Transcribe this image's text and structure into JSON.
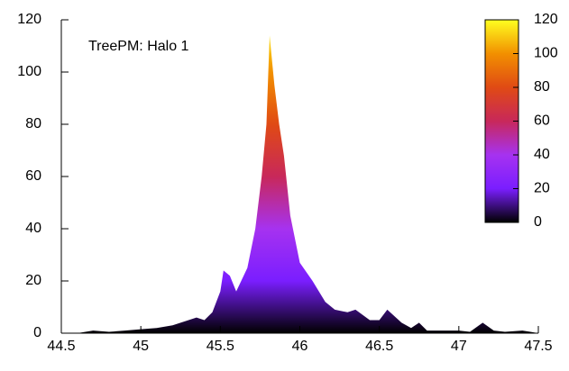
{
  "chart_data": {
    "type": "area",
    "annotation": "TreePM: Halo 1",
    "x": [
      44.5,
      44.6,
      44.7,
      44.8,
      44.9,
      45.0,
      45.1,
      45.2,
      45.25,
      45.3,
      45.35,
      45.4,
      45.45,
      45.5,
      45.52,
      45.56,
      45.6,
      45.67,
      45.72,
      45.76,
      45.79,
      45.81,
      45.84,
      45.87,
      45.9,
      45.94,
      46.0,
      46.08,
      46.16,
      46.22,
      46.3,
      46.35,
      46.44,
      46.5,
      46.55,
      46.64,
      46.7,
      46.75,
      46.8,
      46.9,
      47.0,
      47.07,
      47.15,
      47.22,
      47.29,
      47.4,
      47.45,
      47.5
    ],
    "values": [
      0,
      0,
      1,
      0.5,
      1,
      1.5,
      2,
      3,
      4,
      5,
      6,
      5,
      8,
      16,
      24,
      22,
      16,
      25,
      40,
      60,
      80,
      114,
      95,
      80,
      68,
      45,
      27,
      20,
      12,
      9,
      8,
      9,
      5,
      5,
      9,
      4,
      2,
      4,
      1,
      1,
      1,
      0.5,
      4,
      1,
      0.5,
      1,
      0.5,
      0
    ],
    "xlim": [
      44.5,
      47.5
    ],
    "xticks": [
      44.5,
      45,
      45.5,
      46,
      46.5,
      47,
      47.5
    ],
    "ylim": [
      0,
      120
    ],
    "yticks": [
      0,
      20,
      40,
      60,
      80,
      100,
      120
    ],
    "clim": [
      0,
      120
    ],
    "cticks": [
      0,
      20,
      40,
      60,
      80,
      100,
      120
    ],
    "palette": [
      "#000000",
      "#7a1eff",
      "#a632f0",
      "#c8285a",
      "#e04a14",
      "#f29000",
      "#ffff20"
    ]
  }
}
